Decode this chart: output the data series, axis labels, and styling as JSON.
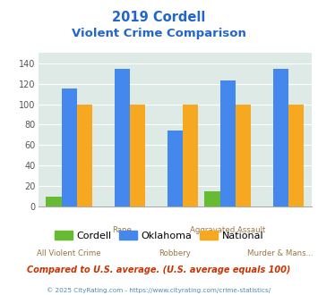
{
  "title_line1": "2019 Cordell",
  "title_line2": "Violent Crime Comparison",
  "categories": [
    "All Violent Crime",
    "Rape",
    "Robbery",
    "Aggravated Assault",
    "Murder & Mans..."
  ],
  "stagger": [
    false,
    true,
    false,
    true,
    false
  ],
  "series": {
    "Cordell": [
      10,
      0,
      0,
      15,
      0
    ],
    "Oklahoma": [
      115,
      135,
      74,
      123,
      135
    ],
    "National": [
      100,
      100,
      100,
      100,
      100
    ]
  },
  "colors": {
    "Cordell": "#66bb33",
    "Oklahoma": "#4488ee",
    "National": "#f5a820"
  },
  "ylim": [
    0,
    150
  ],
  "yticks": [
    0,
    20,
    40,
    60,
    80,
    100,
    120,
    140
  ],
  "footnote1": "Compared to U.S. average. (U.S. average equals 100)",
  "footnote2": "© 2025 CityRating.com - https://www.cityrating.com/crime-statistics/",
  "background_color": "#ddeae5",
  "title_color": "#2266cc",
  "footnote1_color": "#cc3300",
  "footnote2_color": "#5588aa",
  "xlabel_color": "#997744",
  "grid_color": "#ffffff",
  "spine_color": "#aaaaaa"
}
